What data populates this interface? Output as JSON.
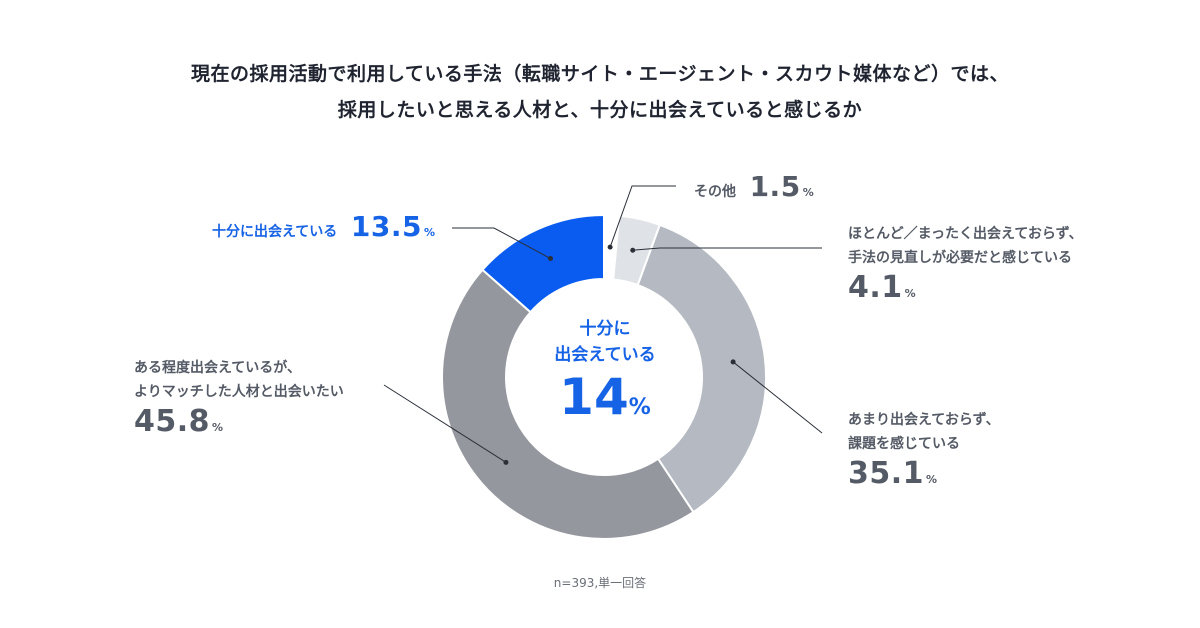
{
  "title": {
    "line1": "現在の採用活動で利用している手法（転職サイト・エージェント・スカウト媒体など）では、",
    "line2": "採用したいと思える人材と、十分に出会えていると感じるか"
  },
  "center_label": {
    "line1": "十分に",
    "line2": "出会えている",
    "value": "14",
    "unit": "%"
  },
  "note": "n=393,単一回答",
  "percent_sign": "%",
  "chart_data": {
    "type": "pie",
    "donut": true,
    "unit": "%",
    "slices": [
      {
        "label": "十分に出会えている",
        "value": 13.5,
        "color": "#0a5cf0"
      },
      {
        "label": "その他",
        "value": 1.5,
        "color": "#ffffff"
      },
      {
        "label": "ほとんど／まったく出会えておらず、手法の見直しが必要だと感じている",
        "value": 4.1,
        "color": "#dfe2e6"
      },
      {
        "label": "あまり出会えておらず、課題を感じている",
        "value": 35.1,
        "color": "#b5b9c1"
      },
      {
        "label": "ある程度出会えているが、よりマッチした人材と出会いたい",
        "value": 45.8,
        "color": "#94979e"
      }
    ],
    "labels": {
      "enough": {
        "text": "十分に出会えている",
        "value": "13.5"
      },
      "other": {
        "text": "その他",
        "value": "1.5"
      },
      "rarely": {
        "line1": "ほとんど／まったく出会えておらず、",
        "line2": "手法の見直しが必要だと感じている",
        "value": "4.1"
      },
      "notmuch": {
        "line1": "あまり出会えておらず、",
        "line2": "課題を感じている",
        "value": "35.1"
      },
      "somewhat": {
        "line1": "ある程度出会えているが、",
        "line2": "よりマッチした人材と出会いたい",
        "value": "45.8"
      }
    }
  }
}
